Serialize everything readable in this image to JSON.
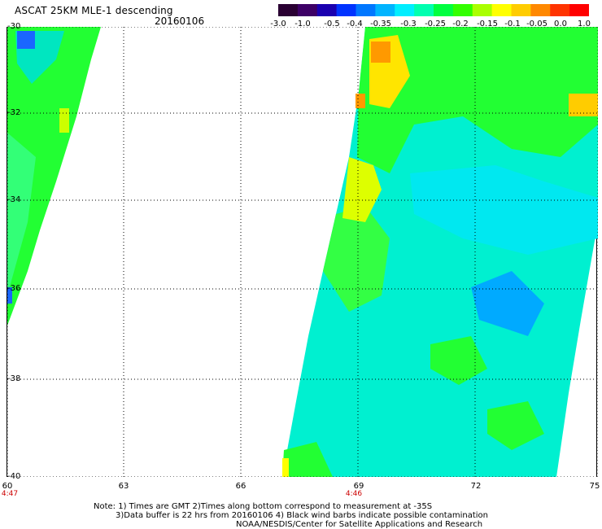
{
  "header": {
    "title": "ASCAT 25KM MLE-1 descending",
    "date": "20160106"
  },
  "colorbar": {
    "labels": [
      "-3.0",
      "-1.0",
      "-0.5",
      "-0.4",
      "-0.35",
      "-0.3",
      "-0.25",
      "-0.2",
      "-0.15",
      "-0.1",
      "-0.05",
      "0.0",
      "1.0"
    ],
    "colors": [
      "#2a0033",
      "#3d0066",
      "#1a00b0",
      "#0033ff",
      "#0077ff",
      "#00b4ff",
      "#00eeff",
      "#00ffb0",
      "#00ff40",
      "#33ff00",
      "#aaff00",
      "#ffff00",
      "#ffcc00",
      "#ff8800",
      "#ff3300",
      "#ff0000"
    ]
  },
  "map": {
    "lat_labels": [
      "-30",
      "-32",
      "-34",
      "-36",
      "-38",
      "-40"
    ],
    "lon_labels": [
      "60",
      "63",
      "66",
      "69",
      "72",
      "75"
    ],
    "time_labels": [
      "4:47",
      "4:46"
    ],
    "lat_range": [
      -40,
      -30
    ],
    "lon_range": [
      60,
      75
    ],
    "grid": true,
    "grid_style": "dotted"
  },
  "notes": {
    "line1": "Note: 1) Times are GMT 2)Times along bottom correspond to measurement at -35S",
    "line2": "3)Data buffer is 22 hrs from 20160106 4) Black wind barbs indicate possible contamination",
    "line3": "NOAA/NESDIS/Center for Satellite Applications and Research"
  }
}
